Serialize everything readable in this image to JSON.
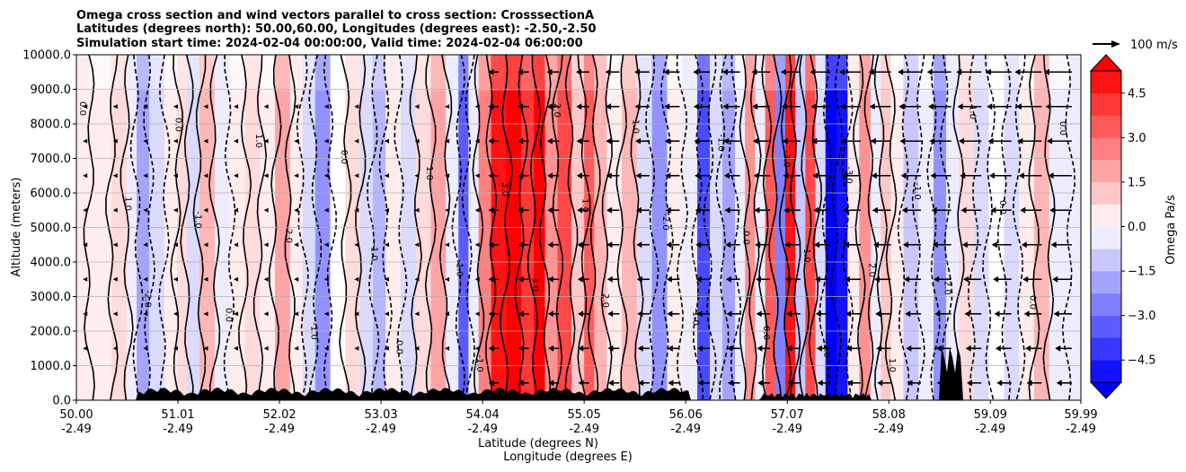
{
  "chart_data": {
    "type": "heatmap",
    "title": [
      "Omega cross section and wind vectors parallel to cross section: CrosssectionA",
      "Latitudes (degrees north): 50.00,60.00, Longitudes (degrees east): -2.50,-2.50",
      "Simulation start time: 2024-02-04 00:00:00, Valid time: 2024-02-04 06:00:00"
    ],
    "ylabel": "Altitude (meters)",
    "xlabel_lat": "Latitude (degrees N)",
    "xlabel_lon": "Longitude (degrees E)",
    "xlim": [
      50.0,
      59.99
    ],
    "ylim": [
      0,
      10000
    ],
    "x_ticks": [
      {
        "lat": "50.00",
        "lon": "-2.49"
      },
      {
        "lat": "51.01",
        "lon": "-2.49"
      },
      {
        "lat": "52.02",
        "lon": "-2.49"
      },
      {
        "lat": "53.03",
        "lon": "-2.49"
      },
      {
        "lat": "54.04",
        "lon": "-2.49"
      },
      {
        "lat": "55.05",
        "lon": "-2.49"
      },
      {
        "lat": "56.06",
        "lon": "-2.49"
      },
      {
        "lat": "57.07",
        "lon": "-2.49"
      },
      {
        "lat": "58.08",
        "lon": "-2.49"
      },
      {
        "lat": "59.09",
        "lon": "-2.49"
      },
      {
        "lat": "59.99",
        "lon": "-2.49"
      }
    ],
    "y_ticks": [
      "0.0",
      "1000.0",
      "2000.0",
      "3000.0",
      "4000.0",
      "5000.0",
      "6000.0",
      "7000.0",
      "8000.0",
      "9000.0",
      "10000.0"
    ],
    "grid": true,
    "colorbar": {
      "label": "Omega Pa/s",
      "range": [
        -5.25,
        5.25
      ],
      "ticks": [
        "4.5",
        "3.0",
        "1.5",
        "0.0",
        "−1.5",
        "−3.0",
        "−4.5"
      ],
      "low_color": "#0000ff",
      "mid_color": "#ffffff",
      "high_color": "#ff0000"
    },
    "vector_key": {
      "label": "100 m/s"
    },
    "contour_labels": [
      "0.0",
      "1.0",
      "2.0",
      "-1.0",
      "-2.0",
      "3.0",
      "-3.0"
    ],
    "omega_bands": [
      {
        "lat": 50.0,
        "v": 0.4
      },
      {
        "lat": 50.25,
        "v": 0.2
      },
      {
        "lat": 50.45,
        "v": 0.6
      },
      {
        "lat": 50.55,
        "v": -0.5
      },
      {
        "lat": 50.65,
        "v": -1.8
      },
      {
        "lat": 50.8,
        "v": -0.8
      },
      {
        "lat": 50.95,
        "v": 0.2
      },
      {
        "lat": 51.05,
        "v": 0.8
      },
      {
        "lat": 51.15,
        "v": -0.6
      },
      {
        "lat": 51.3,
        "v": 1.5
      },
      {
        "lat": 51.45,
        "v": -0.4
      },
      {
        "lat": 51.6,
        "v": 0.3
      },
      {
        "lat": 51.75,
        "v": 0.9
      },
      {
        "lat": 51.9,
        "v": 0.2
      },
      {
        "lat": 52.05,
        "v": 1.8
      },
      {
        "lat": 52.2,
        "v": 0.5
      },
      {
        "lat": 52.3,
        "v": -0.8
      },
      {
        "lat": 52.45,
        "v": -2.4
      },
      {
        "lat": 52.6,
        "v": 0.1
      },
      {
        "lat": 52.75,
        "v": 0.9
      },
      {
        "lat": 52.9,
        "v": -0.6
      },
      {
        "lat": 53.0,
        "v": -1.4
      },
      {
        "lat": 53.15,
        "v": 0.4
      },
      {
        "lat": 53.3,
        "v": -0.8
      },
      {
        "lat": 53.45,
        "v": 0.8
      },
      {
        "lat": 53.6,
        "v": 1.7
      },
      {
        "lat": 53.75,
        "v": -0.5
      },
      {
        "lat": 53.85,
        "v": -3.2
      },
      {
        "lat": 53.95,
        "v": -0.5
      },
      {
        "lat": 54.05,
        "v": 2.8
      },
      {
        "lat": 54.2,
        "v": 4.8
      },
      {
        "lat": 54.35,
        "v": 5.2
      },
      {
        "lat": 54.5,
        "v": 4.2
      },
      {
        "lat": 54.6,
        "v": 5.2
      },
      {
        "lat": 54.72,
        "v": 2.2
      },
      {
        "lat": 54.85,
        "v": 3.6
      },
      {
        "lat": 55.0,
        "v": 1.2
      },
      {
        "lat": 55.1,
        "v": 3.2
      },
      {
        "lat": 55.2,
        "v": 1.6
      },
      {
        "lat": 55.35,
        "v": 0.3
      },
      {
        "lat": 55.5,
        "v": 1.4
      },
      {
        "lat": 55.65,
        "v": -0.9
      },
      {
        "lat": 55.8,
        "v": -2.3
      },
      {
        "lat": 55.95,
        "v": 0.3
      },
      {
        "lat": 56.1,
        "v": -0.5
      },
      {
        "lat": 56.25,
        "v": -3.8
      },
      {
        "lat": 56.35,
        "v": -0.6
      },
      {
        "lat": 56.5,
        "v": -1.8
      },
      {
        "lat": 56.6,
        "v": -0.3
      },
      {
        "lat": 56.7,
        "v": 2.2
      },
      {
        "lat": 56.8,
        "v": -0.4
      },
      {
        "lat": 56.9,
        "v": 3.2
      },
      {
        "lat": 57.0,
        "v": -2.6
      },
      {
        "lat": 57.1,
        "v": 5.0
      },
      {
        "lat": 57.2,
        "v": -1.2
      },
      {
        "lat": 57.3,
        "v": 3.6
      },
      {
        "lat": 57.4,
        "v": -0.8
      },
      {
        "lat": 57.5,
        "v": -5.2
      },
      {
        "lat": 57.62,
        "v": -5.0
      },
      {
        "lat": 57.72,
        "v": 0.4
      },
      {
        "lat": 57.85,
        "v": 2.2
      },
      {
        "lat": 57.95,
        "v": -0.4
      },
      {
        "lat": 58.05,
        "v": 1.0
      },
      {
        "lat": 58.15,
        "v": 0.2
      },
      {
        "lat": 58.3,
        "v": -1.2
      },
      {
        "lat": 58.45,
        "v": -0.2
      },
      {
        "lat": 58.6,
        "v": -2.4
      },
      {
        "lat": 58.7,
        "v": -0.5
      },
      {
        "lat": 58.85,
        "v": 0.7
      },
      {
        "lat": 59.0,
        "v": -0.9
      },
      {
        "lat": 59.15,
        "v": 0.1
      },
      {
        "lat": 59.3,
        "v": -0.6
      },
      {
        "lat": 59.45,
        "v": 0.2
      },
      {
        "lat": 59.6,
        "v": 1.6
      },
      {
        "lat": 59.75,
        "v": -0.3
      },
      {
        "lat": 59.99,
        "v": -0.4
      }
    ]
  }
}
